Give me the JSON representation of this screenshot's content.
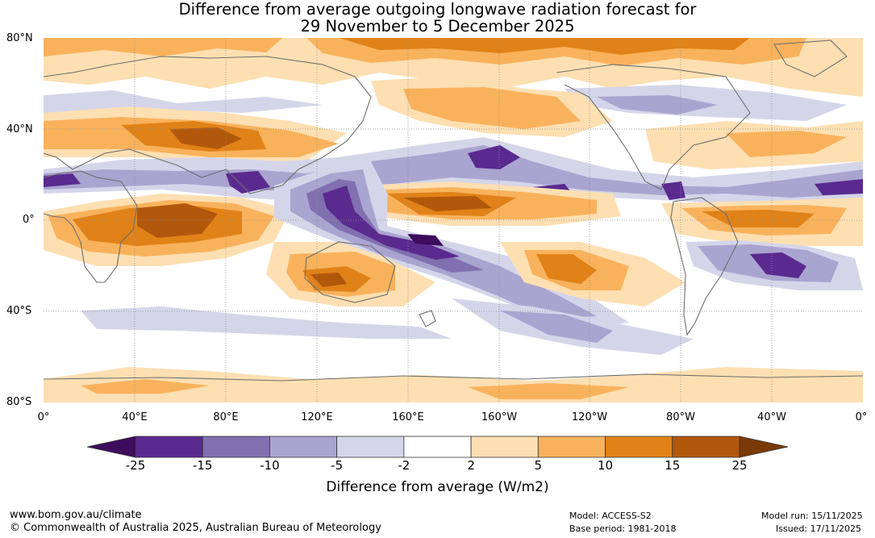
{
  "title": {
    "line1": "Difference from average outgoing longwave radiation forecast for",
    "line2": "29 November to 5 December 2025"
  },
  "map": {
    "lat_labels": [
      "80°N",
      "40°N",
      "0°",
      "40°S",
      "80°S"
    ],
    "lon_labels": [
      "0°",
      "40°E",
      "80°E",
      "120°E",
      "160°E",
      "160°W",
      "120°W",
      "80°W",
      "40°W",
      "0°"
    ]
  },
  "colorbar": {
    "labels": [
      "-25",
      "-15",
      "-10",
      "-5",
      "-2",
      "2",
      "5",
      "10",
      "15",
      "25"
    ],
    "colors": [
      "#3d0c5c",
      "#5a2a8f",
      "#8070b0",
      "#aaa4d0",
      "#d5d5ea",
      "#ffffff",
      "#fddfb2",
      "#f9b25c",
      "#e08218",
      "#b2580c",
      "#7a3a08"
    ],
    "title": "Difference from average (W/m2)"
  },
  "footer": {
    "url": "www.bom.gov.au/climate",
    "copyright": "© Commonwealth of Australia 2025, Australian Bureau of Meteorology",
    "model": "Model: ACCESS-S2",
    "base_period": "Base period: 1981-2018",
    "model_run": "Model run: 15/11/2025",
    "issued": "Issued: 17/11/2025"
  }
}
